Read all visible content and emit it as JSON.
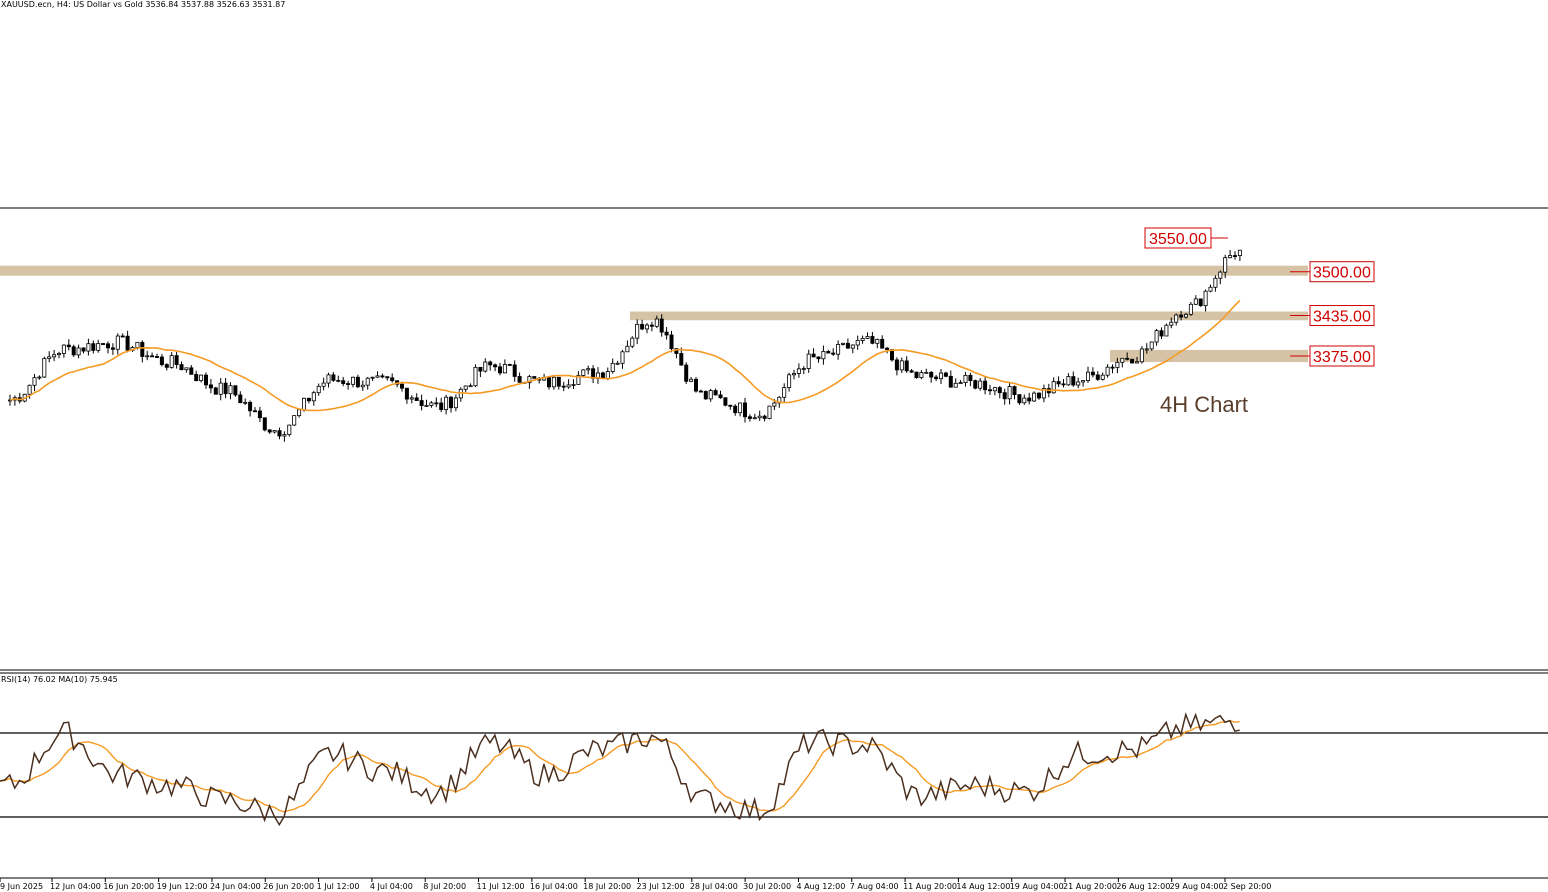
{
  "header": {
    "symbol_line": "XAUUSD.ecn, H4:  US Dollar vs Gold  3536.84 3537.88 3526.63 3531.87"
  },
  "annotation": "4H Chart",
  "rsi_header": "RSI(14) 76.02 MA(10) 75.945",
  "colors": {
    "zone": "#d6c3a6",
    "ma": "#f59a23",
    "level_text": "#d00000",
    "candle": "#000000",
    "annotation": "#5a3e2b"
  },
  "chart_data": [
    {
      "type": "candlestick",
      "symbol": "XAUUSD.ecn",
      "timeframe": "H4",
      "title": "XAUUSD.ecn, H4:  US Dollar vs Gold",
      "ohlc_last": {
        "open": 3536.84,
        "high": 3537.88,
        "low": 3526.63,
        "close": 3531.87
      },
      "current_price": 3531.87,
      "x_tick_labels": [
        "9 Jun 2025",
        "12 Jun 04:00",
        "16 Jun 20:00",
        "19 Jun 12:00",
        "24 Jun 04:00",
        "26 Jun 20:00",
        "1 Jul 12:00",
        "4 Jul 04:00",
        "8 Jul 20:00",
        "11 Jul 12:00",
        "16 Jul 04:00",
        "18 Jul 20:00",
        "23 Jul 12:00",
        "28 Jul 04:00",
        "30 Jul 20:00",
        "4 Aug 12:00",
        "7 Aug 04:00",
        "11 Aug 20:00",
        "14 Aug 12:00",
        "19 Aug 04:00",
        "21 Aug 20:00",
        "26 Aug 12:00",
        "29 Aug 04:00",
        "2 Sep 20:00"
      ],
      "levels": [
        {
          "label": "3550.00",
          "value": 3550.0
        },
        {
          "label": "3500.00",
          "value": 3500.0
        },
        {
          "label": "3435.00",
          "value": 3435.0
        },
        {
          "label": "3375.00",
          "value": 3375.0
        }
      ],
      "zones": [
        {
          "from": 3494,
          "to": 3509
        },
        {
          "from": 3428,
          "to": 3441
        },
        {
          "from": 3366,
          "to": 3384
        }
      ],
      "approx_close_path": [
        {
          "x": "9 Jun 2025",
          "y": 3310
        },
        {
          "x": "12 Jun 04:00",
          "y": 3385
        },
        {
          "x": "16 Jun 20:00",
          "y": 3395
        },
        {
          "x": "19 Jun 12:00",
          "y": 3365
        },
        {
          "x": "24 Jun 04:00",
          "y": 3325
        },
        {
          "x": "26 Jun 20:00",
          "y": 3265
        },
        {
          "x": "1 Jul 12:00",
          "y": 3340
        },
        {
          "x": "4 Jul 04:00",
          "y": 3335
        },
        {
          "x": "8 Jul 20:00",
          "y": 3300
        },
        {
          "x": "11 Jul 12:00",
          "y": 3360
        },
        {
          "x": "16 Jul 04:00",
          "y": 3335
        },
        {
          "x": "18 Jul 20:00",
          "y": 3350
        },
        {
          "x": "23 Jul 12:00",
          "y": 3430
        },
        {
          "x": "28 Jul 04:00",
          "y": 3315
        },
        {
          "x": "30 Jul 20:00",
          "y": 3290
        },
        {
          "x": "4 Aug 12:00",
          "y": 3370
        },
        {
          "x": "7 Aug 04:00",
          "y": 3395
        },
        {
          "x": "11 Aug 20:00",
          "y": 3345
        },
        {
          "x": "14 Aug 12:00",
          "y": 3335
        },
        {
          "x": "19 Aug 04:00",
          "y": 3315
        },
        {
          "x": "21 Aug 20:00",
          "y": 3340
        },
        {
          "x": "26 Aug 12:00",
          "y": 3375
        },
        {
          "x": "29 Aug 04:00",
          "y": 3445
        },
        {
          "x": "2 Sep 20:00",
          "y": 3532
        }
      ]
    },
    {
      "type": "line",
      "title": "RSI(14) 76.02 MA(10) 75.945",
      "ylim": [
        0,
        100
      ],
      "levels": [
        70,
        30
      ],
      "rsi_last": 76.02,
      "ma_last": 75.945,
      "approx_rsi_path": [
        {
          "x": "9 Jun 2025",
          "y": 45
        },
        {
          "x": "12 Jun 04:00",
          "y": 70
        },
        {
          "x": "16 Jun 20:00",
          "y": 50
        },
        {
          "x": "19 Jun 12:00",
          "y": 45
        },
        {
          "x": "24 Jun 04:00",
          "y": 38
        },
        {
          "x": "26 Jun 20:00",
          "y": 32
        },
        {
          "x": "1 Jul 12:00",
          "y": 60
        },
        {
          "x": "4 Jul 04:00",
          "y": 52
        },
        {
          "x": "8 Jul 20:00",
          "y": 42
        },
        {
          "x": "11 Jul 12:00",
          "y": 65
        },
        {
          "x": "16 Jul 04:00",
          "y": 50
        },
        {
          "x": "18 Jul 20:00",
          "y": 62
        },
        {
          "x": "23 Jul 12:00",
          "y": 68
        },
        {
          "x": "28 Jul 04:00",
          "y": 38
        },
        {
          "x": "30 Jul 20:00",
          "y": 33
        },
        {
          "x": "4 Aug 12:00",
          "y": 66
        },
        {
          "x": "7 Aug 04:00",
          "y": 64
        },
        {
          "x": "11 Aug 20:00",
          "y": 40
        },
        {
          "x": "14 Aug 12:00",
          "y": 45
        },
        {
          "x": "19 Aug 04:00",
          "y": 42
        },
        {
          "x": "21 Aug 20:00",
          "y": 60
        },
        {
          "x": "26 Aug 12:00",
          "y": 62
        },
        {
          "x": "29 Aug 04:00",
          "y": 73
        },
        {
          "x": "2 Sep 20:00",
          "y": 76
        }
      ]
    }
  ]
}
